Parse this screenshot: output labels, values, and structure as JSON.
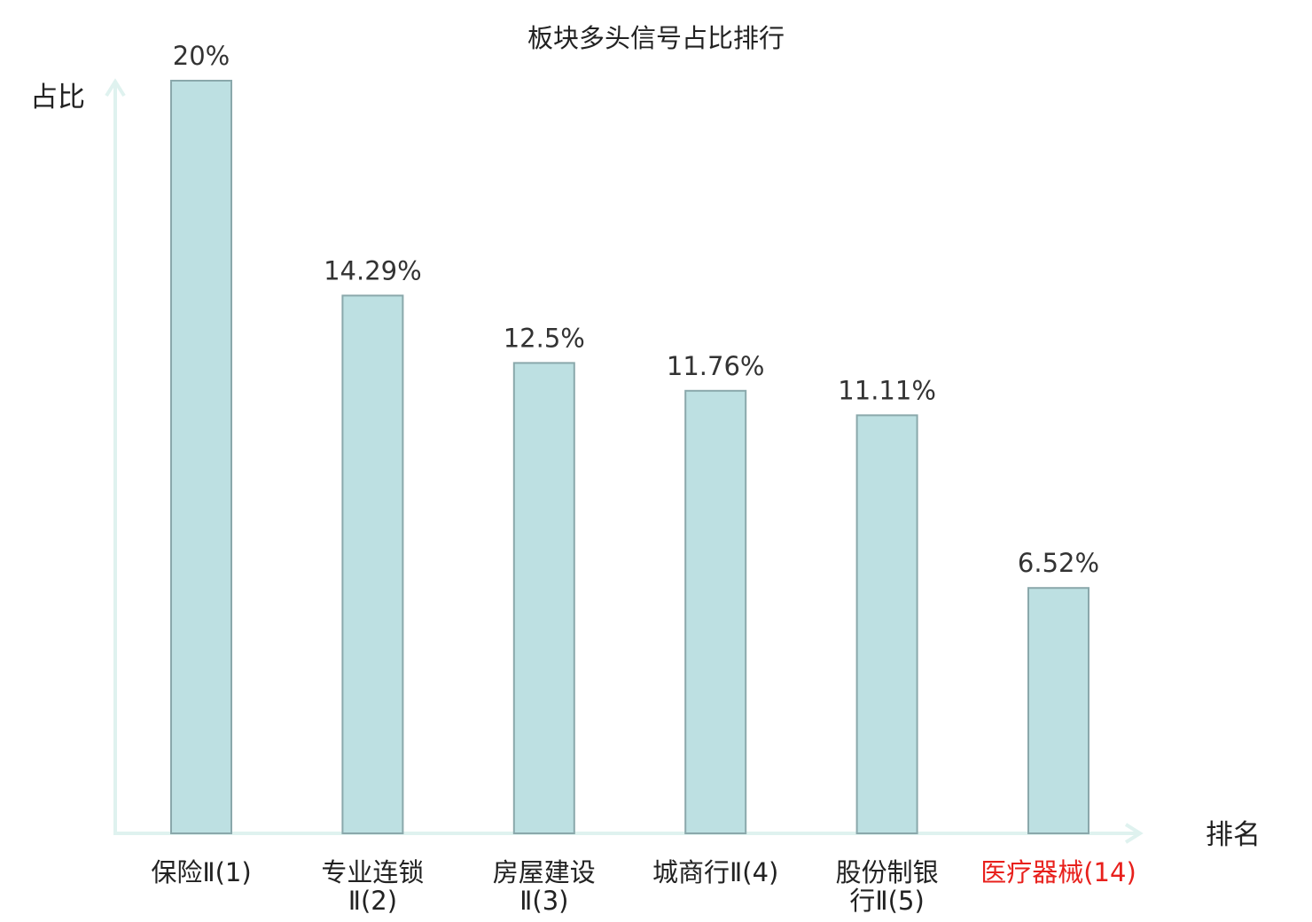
{
  "chart_data": {
    "type": "bar",
    "title": "板块多头信号占比排行",
    "ylabel": "占比",
    "xlabel": "排名",
    "ylim": [
      0,
      20
    ],
    "grid": false,
    "categories": [
      [
        "保险Ⅱ(1)"
      ],
      [
        "专业连锁",
        "Ⅱ(2)"
      ],
      [
        "房屋建设",
        "Ⅱ(3)"
      ],
      [
        "城商行Ⅱ(4)"
      ],
      [
        "股份制银",
        "行Ⅱ(5)"
      ],
      [
        "医疗器械(14)"
      ]
    ],
    "values": [
      20,
      14.29,
      12.5,
      11.76,
      11.11,
      6.52
    ],
    "value_labels": [
      "20%",
      "14.29%",
      "12.5%",
      "11.76%",
      "11.11%",
      "6.52%"
    ],
    "highlight_index": 5,
    "colors": {
      "bar_fill": "#bde0e2",
      "bar_stroke": "#8aa8ab",
      "axis": "#dff2ef",
      "text": "#222222",
      "value_text": "#333333",
      "highlight_text": "#e8201c"
    }
  }
}
